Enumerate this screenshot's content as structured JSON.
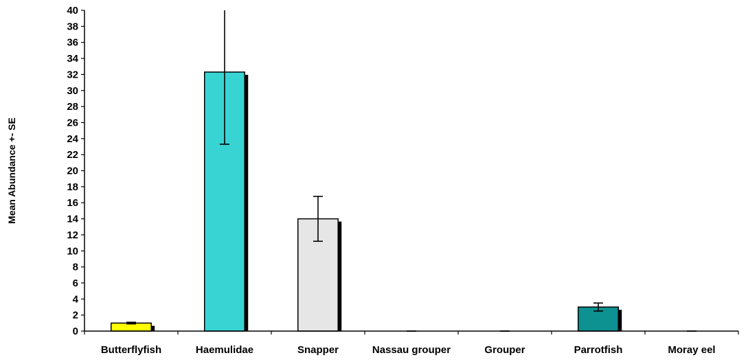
{
  "chart_data": {
    "type": "bar",
    "title": "",
    "xlabel": "",
    "ylabel": "Mean Abundance +- SE",
    "ylim": [
      0,
      40
    ],
    "ytick_step": 2,
    "grid": false,
    "legend": "none",
    "categories": [
      "Butterflyfish",
      "Haemulidae",
      "Snapper",
      "Nassau grouper",
      "Grouper",
      "Parrotfish",
      "Moray eel"
    ],
    "values": [
      1.0,
      32.3,
      14.0,
      0,
      0,
      3.0,
      0
    ],
    "errors": [
      0.1,
      9.0,
      2.8,
      0,
      0,
      0.5,
      0
    ],
    "colors": [
      "#ffff00",
      "#38d4d4",
      "#e6e6e6",
      "#ffffff",
      "#ffffff",
      "#0d9191",
      "#ffffff"
    ]
  }
}
